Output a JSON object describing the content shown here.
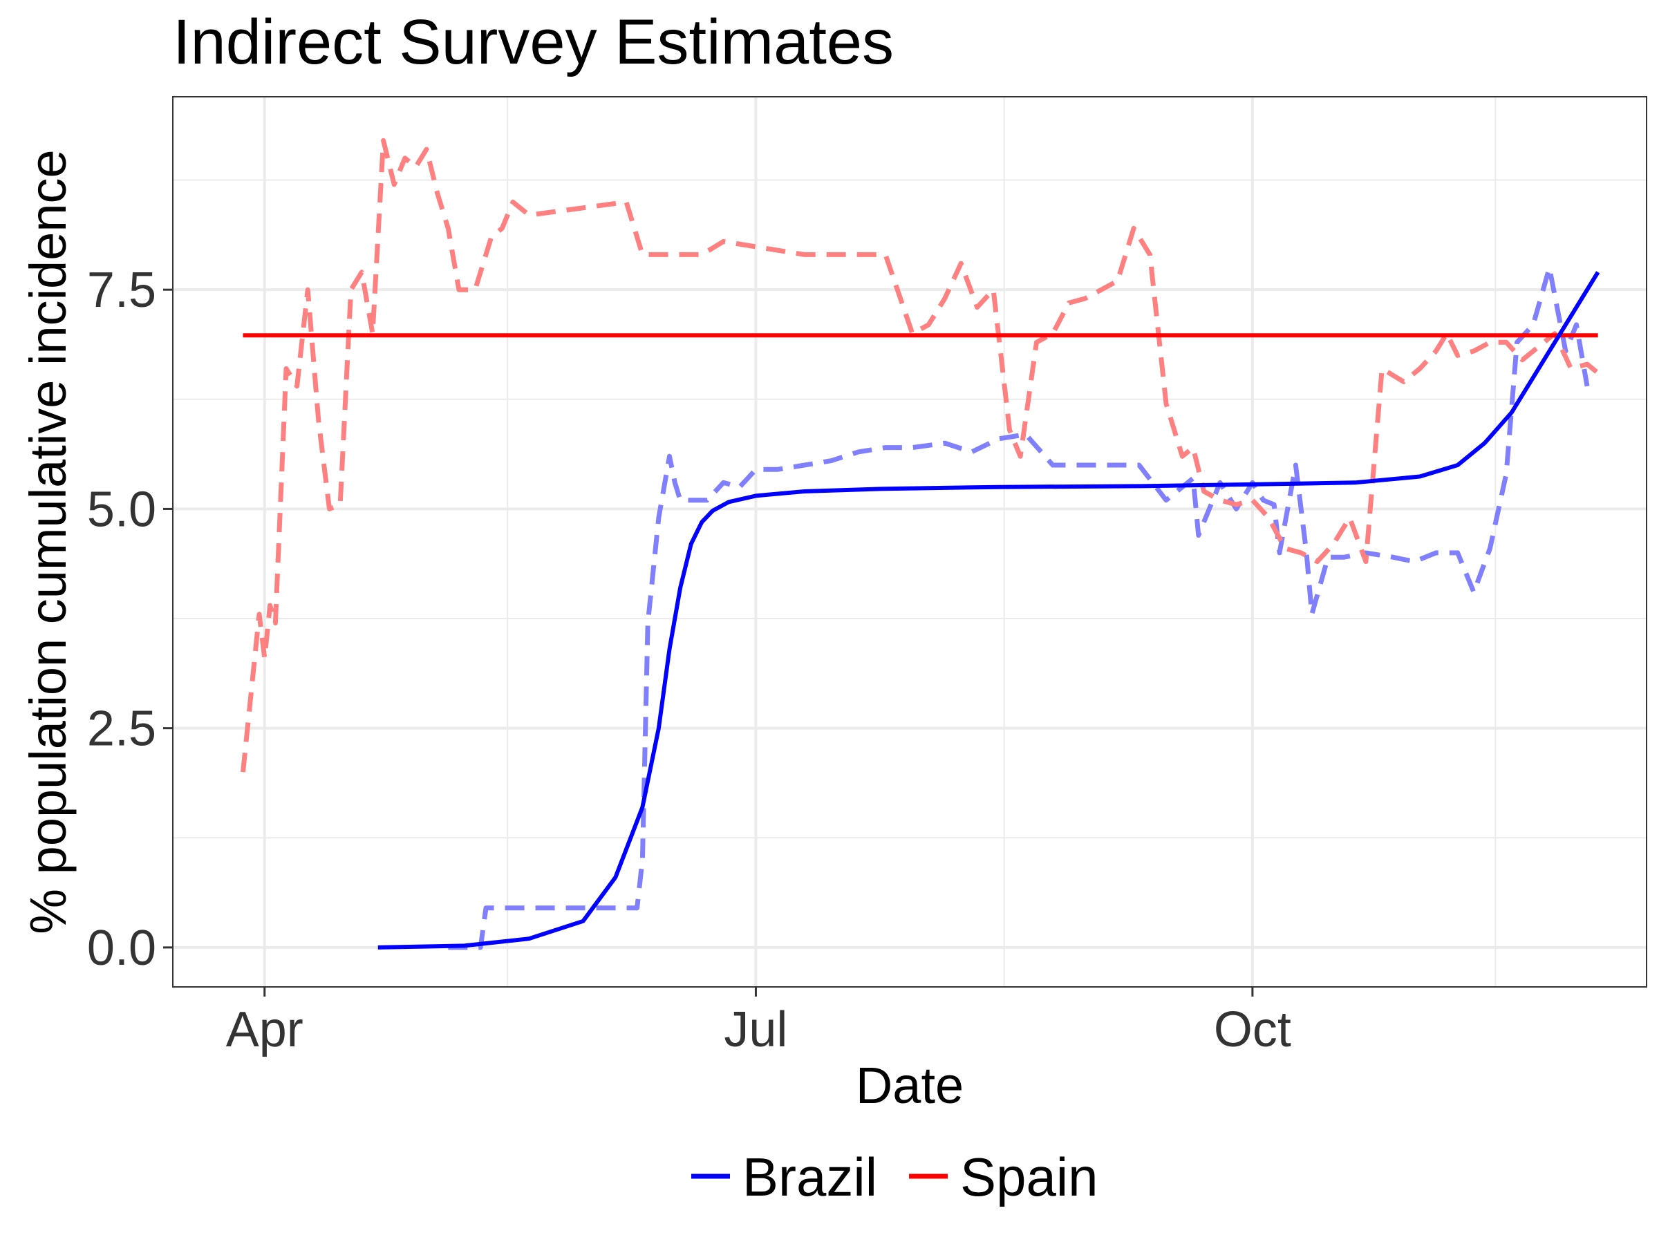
{
  "chart_data": {
    "type": "line",
    "title": "Indirect Survey Estimates",
    "xlabel": "Date",
    "ylabel": "% population cumulative incidence",
    "x_axis": "date",
    "xlim": [
      "2020-03-15",
      "2020-12-13"
    ],
    "x_ticks": [
      "2020-04-01",
      "2020-07-01",
      "2020-10-01"
    ],
    "x_tick_labels": [
      "Apr",
      "Jul",
      "Oct"
    ],
    "x_minor_ticks": [
      "2020-05-16",
      "2020-08-16",
      "2020-11-15"
    ],
    "ylim": [
      -0.45,
      9.7
    ],
    "y_ticks": [
      0.0,
      2.5,
      5.0,
      7.5
    ],
    "y_tick_labels": [
      "0.0",
      "2.5",
      "5.0",
      "7.5"
    ],
    "y_minor_ticks": [
      1.25,
      3.75,
      6.25,
      8.75
    ],
    "grid": true,
    "legend_position": "bottom",
    "series": [
      {
        "name": "Brazil",
        "color": "#0000ff",
        "style": "solid",
        "x": [
          "2020-04-22",
          "2020-05-08",
          "2020-05-20",
          "2020-05-30",
          "2020-06-05",
          "2020-06-10",
          "2020-06-13",
          "2020-06-15",
          "2020-06-17",
          "2020-06-19",
          "2020-06-21",
          "2020-06-23",
          "2020-06-26",
          "2020-07-01",
          "2020-07-10",
          "2020-07-25",
          "2020-08-15",
          "2020-09-10",
          "2020-10-01",
          "2020-10-20",
          "2020-11-01",
          "2020-11-08",
          "2020-11-13",
          "2020-11-18",
          "2020-11-23",
          "2020-11-28",
          "2020-12-04"
        ],
        "y": [
          0.0,
          0.02,
          0.1,
          0.3,
          0.8,
          1.6,
          2.5,
          3.4,
          4.1,
          4.6,
          4.85,
          4.98,
          5.08,
          5.15,
          5.2,
          5.23,
          5.25,
          5.26,
          5.28,
          5.3,
          5.37,
          5.5,
          5.75,
          6.1,
          6.6,
          7.1,
          7.7
        ]
      },
      {
        "name": "Brazil",
        "color": "#8080ff",
        "style": "dashed",
        "x": [
          "2020-05-05",
          "2020-05-11",
          "2020-05-12",
          "2020-06-09",
          "2020-06-10",
          "2020-06-11",
          "2020-06-13",
          "2020-06-15",
          "2020-06-16",
          "2020-06-17",
          "2020-06-22",
          "2020-06-25",
          "2020-06-28",
          "2020-07-01",
          "2020-07-05",
          "2020-07-10",
          "2020-07-15",
          "2020-07-20",
          "2020-07-25",
          "2020-07-30",
          "2020-08-05",
          "2020-08-10",
          "2020-08-15",
          "2020-08-20",
          "2020-08-25",
          "2020-08-30",
          "2020-09-05",
          "2020-09-10",
          "2020-09-15",
          "2020-09-20",
          "2020-09-21",
          "2020-09-25",
          "2020-09-28",
          "2020-10-01",
          "2020-10-03",
          "2020-10-05",
          "2020-10-06",
          "2020-10-09",
          "2020-10-11",
          "2020-10-12",
          "2020-10-15",
          "2020-10-18",
          "2020-10-22",
          "2020-10-27",
          "2020-10-31",
          "2020-11-04",
          "2020-11-08",
          "2020-11-11",
          "2020-11-14",
          "2020-11-17",
          "2020-11-19",
          "2020-11-22",
          "2020-11-25",
          "2020-11-28",
          "2020-11-30",
          "2020-12-02"
        ],
        "y": [
          0.0,
          0.0,
          0.45,
          0.45,
          1.0,
          3.7,
          4.9,
          5.6,
          5.3,
          5.1,
          5.1,
          5.3,
          5.25,
          5.45,
          5.45,
          5.5,
          5.55,
          5.65,
          5.7,
          5.7,
          5.75,
          5.65,
          5.8,
          5.85,
          5.5,
          5.5,
          5.5,
          5.5,
          5.1,
          5.35,
          4.7,
          5.3,
          5.0,
          5.3,
          5.1,
          5.05,
          4.5,
          5.5,
          4.5,
          3.8,
          4.45,
          4.45,
          4.5,
          4.45,
          4.4,
          4.5,
          4.5,
          4.05,
          4.55,
          5.4,
          6.9,
          7.1,
          7.75,
          6.8,
          7.1,
          6.4
        ]
      },
      {
        "name": "Spain",
        "color": "#ff0000",
        "style": "solid",
        "x": [
          "2020-03-28",
          "2020-12-04"
        ],
        "y": [
          6.98,
          6.98
        ]
      },
      {
        "name": "Spain",
        "color": "#ff8080",
        "style": "dashed",
        "x": [
          "2020-03-28",
          "2020-03-31",
          "2020-04-01",
          "2020-04-02",
          "2020-04-03",
          "2020-04-05",
          "2020-04-07",
          "2020-04-09",
          "2020-04-11",
          "2020-04-13",
          "2020-04-15",
          "2020-04-17",
          "2020-04-19",
          "2020-04-21",
          "2020-04-23",
          "2020-04-25",
          "2020-04-27",
          "2020-04-29",
          "2020-05-01",
          "2020-05-03",
          "2020-05-05",
          "2020-05-07",
          "2020-05-10",
          "2020-05-13",
          "2020-05-15",
          "2020-05-17",
          "2020-05-20",
          "2020-06-07",
          "2020-06-10",
          "2020-06-21",
          "2020-06-25",
          "2020-07-10",
          "2020-07-25",
          "2020-07-30",
          "2020-08-02",
          "2020-08-05",
          "2020-08-08",
          "2020-08-11",
          "2020-08-14",
          "2020-08-17",
          "2020-08-19",
          "2020-08-22",
          "2020-08-25",
          "2020-08-28",
          "2020-08-31",
          "2020-09-03",
          "2020-09-06",
          "2020-09-09",
          "2020-09-12",
          "2020-09-15",
          "2020-09-18",
          "2020-09-20",
          "2020-09-22",
          "2020-09-25",
          "2020-09-28",
          "2020-10-01",
          "2020-10-04",
          "2020-10-07",
          "2020-10-10",
          "2020-10-13",
          "2020-10-16",
          "2020-10-19",
          "2020-10-22",
          "2020-10-25",
          "2020-10-29",
          "2020-11-01",
          "2020-11-04",
          "2020-11-06",
          "2020-11-08",
          "2020-11-11",
          "2020-11-14",
          "2020-11-17",
          "2020-11-20",
          "2020-11-23",
          "2020-11-26",
          "2020-11-29",
          "2020-12-02",
          "2020-12-04"
        ],
        "y": [
          2.0,
          3.8,
          3.3,
          3.9,
          3.7,
          6.6,
          6.4,
          7.5,
          6.0,
          5.0,
          5.05,
          7.5,
          7.7,
          7.0,
          9.2,
          8.7,
          9.0,
          8.9,
          9.1,
          8.6,
          8.2,
          7.5,
          7.5,
          8.1,
          8.2,
          8.5,
          8.35,
          8.5,
          7.9,
          7.9,
          8.05,
          7.9,
          7.9,
          7.0,
          7.1,
          7.4,
          7.8,
          7.3,
          7.5,
          5.9,
          5.6,
          6.9,
          7.0,
          7.35,
          7.4,
          7.5,
          7.6,
          8.2,
          7.9,
          6.2,
          5.6,
          5.7,
          5.2,
          5.1,
          5.05,
          5.1,
          4.9,
          4.55,
          4.5,
          4.4,
          4.6,
          4.9,
          4.4,
          6.6,
          6.45,
          6.6,
          6.8,
          7.0,
          6.75,
          6.8,
          6.9,
          6.9,
          6.7,
          6.85,
          7.0,
          6.6,
          6.65,
          6.55
        ]
      }
    ],
    "legend": [
      {
        "label": "Brazil",
        "color": "#0000ff"
      },
      {
        "label": "Spain",
        "color": "#ff0000"
      }
    ]
  }
}
